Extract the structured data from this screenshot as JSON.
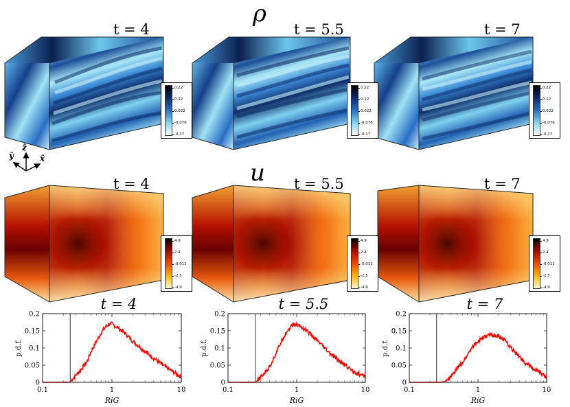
{
  "rows": {
    "rho": {
      "symbol": "ρ"
    },
    "u": {
      "symbol": "u"
    }
  },
  "panels": [
    {
      "time_label": "t = 4"
    },
    {
      "time_label": "t = 5.5"
    },
    {
      "time_label": "t = 7"
    }
  ],
  "colorbars": {
    "rho": {
      "ticks": [
        "0.22",
        "0.12",
        "0.022",
        "-0.076",
        "-0.17"
      ],
      "colors": [
        "#000000",
        "#0a2d6e",
        "#2a6fc4",
        "#7fd6f2",
        "#ffffff"
      ]
    },
    "u": {
      "ticks": [
        "4.9",
        "2.4",
        "-0.011",
        "-2.5",
        "-4.9"
      ],
      "colors": [
        "#000000",
        "#a50d00",
        "#ef4a00",
        "#fdb400",
        "#fffbd0"
      ]
    }
  },
  "axes_icon": {
    "x": "x̂",
    "y": "ŷ",
    "z": "ẑ"
  },
  "chart_data": [
    {
      "type": "line",
      "title": "t = 4",
      "xlabel": "Ri_G",
      "ylabel": "p.d.f.",
      "xscale": "log",
      "xlim": [
        0.1,
        10
      ],
      "ylim": [
        0,
        0.2
      ],
      "xticks": [
        "0.1",
        "1",
        "10"
      ],
      "yticks": [
        "0",
        "0.05",
        "0.1",
        "0.15",
        "0.2"
      ],
      "vline": 0.25,
      "series": [
        {
          "name": "pdf",
          "color": "#ff0000",
          "x": [
            0.1,
            0.25,
            0.27,
            0.3,
            0.35,
            0.4,
            0.45,
            0.5,
            0.6,
            0.7,
            0.8,
            0.9,
            1.0,
            1.2,
            1.5,
            2,
            3,
            4,
            5,
            7,
            10
          ],
          "y": [
            0,
            0,
            0.01,
            0.02,
            0.035,
            0.05,
            0.065,
            0.09,
            0.12,
            0.145,
            0.16,
            0.17,
            0.17,
            0.16,
            0.145,
            0.12,
            0.09,
            0.07,
            0.055,
            0.035,
            0.015
          ]
        }
      ]
    },
    {
      "type": "line",
      "title": "t = 5.5",
      "xlabel": "Ri_G",
      "ylabel": "p.d.f.",
      "xscale": "log",
      "xlim": [
        0.1,
        10
      ],
      "ylim": [
        0,
        0.2
      ],
      "xticks": [
        "0.1",
        "1",
        "10"
      ],
      "yticks": [
        "0",
        "0.05",
        "0.1",
        "0.15",
        "0.2"
      ],
      "vline": 0.25,
      "series": [
        {
          "name": "pdf",
          "color": "#ff0000",
          "x": [
            0.1,
            0.25,
            0.27,
            0.3,
            0.35,
            0.4,
            0.45,
            0.5,
            0.6,
            0.7,
            0.8,
            0.9,
            1.0,
            1.2,
            1.5,
            2,
            3,
            4,
            5,
            7,
            10
          ],
          "y": [
            0,
            0,
            0.005,
            0.015,
            0.03,
            0.045,
            0.065,
            0.085,
            0.12,
            0.145,
            0.16,
            0.168,
            0.168,
            0.16,
            0.145,
            0.12,
            0.085,
            0.065,
            0.05,
            0.03,
            0.015
          ]
        }
      ]
    },
    {
      "type": "line",
      "title": "t = 7",
      "xlabel": "Ri_G",
      "ylabel": "p.d.f.",
      "xscale": "log",
      "xlim": [
        0.1,
        10
      ],
      "ylim": [
        0,
        0.2
      ],
      "xticks": [
        "0.1",
        "1",
        "10"
      ],
      "yticks": [
        "0",
        "0.05",
        "0.1",
        "0.15",
        "0.2"
      ],
      "vline": 0.25,
      "series": [
        {
          "name": "pdf",
          "color": "#ff0000",
          "x": [
            0.1,
            0.3,
            0.35,
            0.4,
            0.5,
            0.6,
            0.7,
            0.8,
            1.0,
            1.2,
            1.5,
            2,
            2.5,
            3,
            4,
            5,
            7,
            10
          ],
          "y": [
            0,
            0,
            0.005,
            0.015,
            0.04,
            0.06,
            0.08,
            0.1,
            0.12,
            0.13,
            0.138,
            0.135,
            0.12,
            0.1,
            0.075,
            0.055,
            0.035,
            0.015
          ]
        }
      ]
    }
  ]
}
